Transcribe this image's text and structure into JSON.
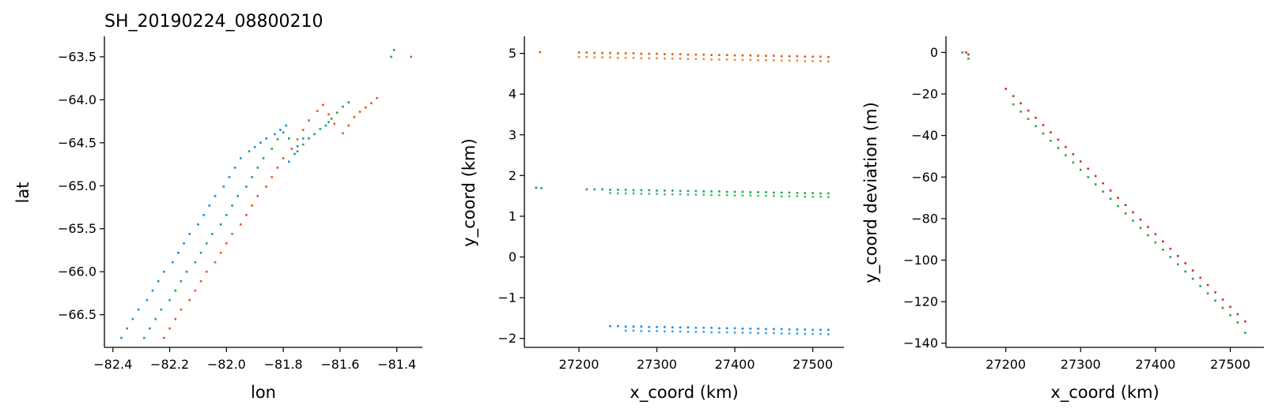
{
  "figure_title": "SH_20190224_08800210",
  "colors": {
    "strong_beam_orange": "#e05a12",
    "weak_beam_orange": "#f08a3c",
    "strong_beam_green": "#1fa653",
    "weak_beam_green": "#3cc472",
    "strong_beam_blue": "#1a8de0",
    "weak_beam_blue": "#30a8f2",
    "red": "#c8321e"
  },
  "chart_data": [
    {
      "type": "scatter",
      "title": "SH_20190224_08800210",
      "xlabel": "lon",
      "ylabel": "lat",
      "xlim": [
        -82.43,
        -81.31
      ],
      "ylim": [
        -66.88,
        -63.28
      ],
      "xticks": [
        -82.4,
        -82.2,
        -82.0,
        -81.8,
        -81.6,
        -81.4
      ],
      "xtick_labels": [
        "−82.4",
        "−82.2",
        "−82.0",
        "−81.8",
        "−81.6",
        "−81.4"
      ],
      "yticks": [
        -66.5,
        -66.0,
        -65.5,
        -65.0,
        -64.5,
        -64.0,
        -63.5
      ],
      "ytick_labels": [
        "−66.5",
        "−66.0",
        "−65.5",
        "−65.0",
        "−64.5",
        "−64.0",
        "−63.5"
      ],
      "grid": false,
      "series": [
        {
          "color": "#1a8de0",
          "x": [
            -82.37,
            -82.35,
            -82.33,
            -82.31,
            -82.28,
            -82.26,
            -82.24,
            -82.22,
            -82.19,
            -82.17,
            -82.15,
            -82.13,
            -82.1,
            -82.08,
            -82.06,
            -82.04,
            -82.01,
            -81.99,
            -81.97,
            -81.95,
            -81.92,
            -81.9,
            -81.88,
            -81.86,
            -81.83,
            -81.81,
            -81.79,
            -81.78,
            -81.76,
            -81.75,
            -81.73
          ],
          "y": [
            -66.77,
            -66.66,
            -66.55,
            -66.44,
            -66.33,
            -66.22,
            -66.11,
            -66.0,
            -65.89,
            -65.78,
            -65.67,
            -65.56,
            -65.45,
            -65.34,
            -65.23,
            -65.12,
            -65.01,
            -64.9,
            -64.79,
            -64.68,
            -64.6,
            -64.55,
            -64.5,
            -64.45,
            -64.4,
            -64.35,
            -64.3,
            -64.72,
            -64.63,
            -64.54,
            -64.45
          ]
        },
        {
          "color": "#1fa653",
          "x": [
            -82.29,
            -82.27,
            -82.25,
            -82.23,
            -82.2,
            -82.18,
            -82.16,
            -82.14,
            -82.11,
            -82.09,
            -82.07,
            -82.05,
            -82.02,
            -82.0,
            -81.98,
            -81.96,
            -81.93,
            -81.91,
            -81.89,
            -81.87,
            -81.84,
            -81.82,
            -81.8,
            -81.78,
            -81.75,
            -81.73,
            -81.71,
            -81.69,
            -81.67,
            -81.65,
            -81.64,
            -81.63,
            -81.61,
            -81.59,
            -81.57,
            -81.42,
            -81.41
          ],
          "y": [
            -66.77,
            -66.66,
            -66.55,
            -66.44,
            -66.33,
            -66.22,
            -66.11,
            -66.0,
            -65.89,
            -65.78,
            -65.67,
            -65.56,
            -65.45,
            -65.34,
            -65.23,
            -65.12,
            -65.01,
            -64.9,
            -64.79,
            -64.68,
            -64.57,
            -64.46,
            -64.38,
            -64.45,
            -64.6,
            -64.52,
            -64.45,
            -64.4,
            -64.34,
            -64.3,
            -64.26,
            -64.22,
            -64.15,
            -64.08,
            -64.03,
            -63.5,
            -63.42
          ]
        },
        {
          "color": "#e05a12",
          "x": [
            -82.22,
            -82.2,
            -82.18,
            -82.16,
            -82.13,
            -82.11,
            -82.09,
            -82.07,
            -82.04,
            -82.02,
            -82.0,
            -81.98,
            -81.95,
            -81.93,
            -81.91,
            -81.89,
            -81.86,
            -81.84,
            -81.82,
            -81.8,
            -81.77,
            -81.75,
            -81.73,
            -81.71,
            -81.68,
            -81.66,
            -81.64,
            -81.62,
            -81.59,
            -81.57,
            -81.55,
            -81.53,
            -81.51,
            -81.49,
            -81.47,
            -81.35
          ],
          "y": [
            -66.77,
            -66.66,
            -66.55,
            -66.44,
            -66.33,
            -66.22,
            -66.11,
            -66.0,
            -65.89,
            -65.78,
            -65.67,
            -65.56,
            -65.45,
            -65.34,
            -65.23,
            -65.12,
            -65.01,
            -64.9,
            -64.79,
            -64.68,
            -64.57,
            -64.46,
            -64.35,
            -64.24,
            -64.13,
            -64.06,
            -64.17,
            -64.28,
            -64.39,
            -64.3,
            -64.2,
            -64.14,
            -64.09,
            -64.04,
            -63.98,
            -63.5
          ]
        }
      ]
    },
    {
      "type": "scatter",
      "title": "",
      "xlabel": "x_coord (km)",
      "ylabel": "y_coord (km)",
      "xlim": [
        27130,
        27540
      ],
      "ylim": [
        -2.22,
        5.38
      ],
      "xticks": [
        27200,
        27300,
        27400,
        27500
      ],
      "xtick_labels": [
        "27200",
        "27300",
        "27400",
        "27500"
      ],
      "yticks": [
        -2,
        -1,
        0,
        1,
        2,
        3,
        4,
        5
      ],
      "ytick_labels": [
        "−2",
        "−1",
        "0",
        "1",
        "2",
        "3",
        "4",
        "5"
      ],
      "grid": false,
      "series": [
        {
          "color": "#e05a12",
          "x": [
            27150,
            27200,
            27210,
            27220,
            27230,
            27240,
            27250,
            27260,
            27270,
            27280,
            27290,
            27300,
            27310,
            27320,
            27330,
            27340,
            27350,
            27360,
            27370,
            27380,
            27390,
            27400,
            27410,
            27420,
            27430,
            27440,
            27450,
            27460,
            27470,
            27480,
            27490,
            27500,
            27510,
            27520
          ],
          "y": [
            5.03,
            5.02,
            5.02,
            5.01,
            5.01,
            5.01,
            5.0,
            5.0,
            5.0,
            4.99,
            4.99,
            4.99,
            4.98,
            4.98,
            4.98,
            4.97,
            4.97,
            4.97,
            4.96,
            4.96,
            4.96,
            4.95,
            4.95,
            4.95,
            4.94,
            4.94,
            4.94,
            4.93,
            4.93,
            4.93,
            4.92,
            4.92,
            4.92,
            4.91
          ]
        },
        {
          "color": "#f08a3c",
          "x": [
            27200,
            27210,
            27220,
            27230,
            27240,
            27250,
            27260,
            27270,
            27280,
            27290,
            27300,
            27310,
            27320,
            27330,
            27340,
            27350,
            27360,
            27370,
            27380,
            27390,
            27400,
            27410,
            27420,
            27430,
            27440,
            27450,
            27460,
            27470,
            27480,
            27490,
            27500,
            27510,
            27520
          ],
          "y": [
            4.91,
            4.91,
            4.9,
            4.9,
            4.9,
            4.89,
            4.89,
            4.89,
            4.88,
            4.88,
            4.88,
            4.87,
            4.87,
            4.87,
            4.86,
            4.86,
            4.86,
            4.85,
            4.85,
            4.85,
            4.84,
            4.84,
            4.84,
            4.83,
            4.83,
            4.83,
            4.82,
            4.82,
            4.82,
            4.81,
            4.81,
            4.81,
            4.8
          ]
        },
        {
          "color": "#1fa653",
          "x": [
            27145,
            27152,
            27210,
            27220,
            27230,
            27240,
            27250,
            27260,
            27270,
            27280,
            27290,
            27300,
            27310,
            27320,
            27330,
            27340,
            27350,
            27360,
            27370,
            27380,
            27390,
            27400,
            27410,
            27420,
            27430,
            27440,
            27450,
            27460,
            27470,
            27480,
            27490,
            27500,
            27510,
            27520
          ],
          "y": [
            1.7,
            1.69,
            1.66,
            1.66,
            1.66,
            1.65,
            1.65,
            1.65,
            1.64,
            1.64,
            1.64,
            1.63,
            1.63,
            1.63,
            1.62,
            1.62,
            1.62,
            1.61,
            1.61,
            1.61,
            1.6,
            1.6,
            1.6,
            1.59,
            1.59,
            1.59,
            1.58,
            1.58,
            1.58,
            1.57,
            1.57,
            1.57,
            1.56,
            1.56
          ]
        },
        {
          "color": "#3cc472",
          "x": [
            27240,
            27250,
            27260,
            27270,
            27280,
            27290,
            27300,
            27310,
            27320,
            27330,
            27340,
            27350,
            27360,
            27370,
            27380,
            27390,
            27400,
            27410,
            27420,
            27430,
            27440,
            27450,
            27460,
            27470,
            27480,
            27490,
            27500,
            27510,
            27520
          ],
          "y": [
            1.57,
            1.56,
            1.56,
            1.56,
            1.55,
            1.55,
            1.55,
            1.54,
            1.54,
            1.54,
            1.53,
            1.53,
            1.53,
            1.52,
            1.52,
            1.52,
            1.51,
            1.51,
            1.51,
            1.5,
            1.5,
            1.5,
            1.49,
            1.49,
            1.49,
            1.48,
            1.48,
            1.48,
            1.47
          ]
        },
        {
          "color": "#1a8de0",
          "x": [
            27240,
            27250,
            27260,
            27270,
            27280,
            27290,
            27300,
            27310,
            27320,
            27330,
            27340,
            27350,
            27360,
            27370,
            27380,
            27390,
            27400,
            27410,
            27420,
            27430,
            27440,
            27450,
            27460,
            27470,
            27480,
            27490,
            27500,
            27510,
            27520
          ],
          "y": [
            -1.7,
            -1.7,
            -1.71,
            -1.71,
            -1.71,
            -1.72,
            -1.72,
            -1.72,
            -1.73,
            -1.73,
            -1.73,
            -1.74,
            -1.74,
            -1.74,
            -1.75,
            -1.75,
            -1.75,
            -1.76,
            -1.76,
            -1.76,
            -1.77,
            -1.77,
            -1.77,
            -1.78,
            -1.78,
            -1.78,
            -1.79,
            -1.79,
            -1.79
          ]
        },
        {
          "color": "#30a8f2",
          "x": [
            27260,
            27270,
            27280,
            27290,
            27300,
            27310,
            27320,
            27330,
            27340,
            27350,
            27360,
            27370,
            27380,
            27390,
            27400,
            27410,
            27420,
            27430,
            27440,
            27450,
            27460,
            27470,
            27480,
            27490,
            27500,
            27510,
            27520
          ],
          "y": [
            -1.81,
            -1.81,
            -1.82,
            -1.82,
            -1.82,
            -1.83,
            -1.83,
            -1.83,
            -1.84,
            -1.84,
            -1.84,
            -1.85,
            -1.85,
            -1.85,
            -1.86,
            -1.86,
            -1.86,
            -1.87,
            -1.87,
            -1.87,
            -1.88,
            -1.88,
            -1.88,
            -1.89,
            -1.89,
            -1.89,
            -1.9
          ]
        }
      ]
    },
    {
      "type": "scatter",
      "title": "",
      "xlabel": "x_coord (km)",
      "ylabel": "y_coord deviation (m)",
      "xlim": [
        27120,
        27545
      ],
      "ylim": [
        -142,
        7
      ],
      "xticks": [
        27200,
        27300,
        27400,
        27500
      ],
      "xtick_labels": [
        "27200",
        "27300",
        "27400",
        "27500"
      ],
      "yticks": [
        -140,
        -120,
        -100,
        -80,
        -60,
        -40,
        -20,
        0
      ],
      "ytick_labels": [
        "−140",
        "−120",
        "−100",
        "−80",
        "−60",
        "−40",
        "−20",
        "0"
      ],
      "grid": false,
      "series": [
        {
          "color": "#c8321e",
          "x": [
            27147,
            27150,
            27200,
            27210,
            27220,
            27230,
            27240,
            27250,
            27260,
            27270,
            27280,
            27290,
            27300,
            27310,
            27320,
            27330,
            27340,
            27350,
            27360,
            27370,
            27380,
            27390,
            27400,
            27410,
            27420,
            27430,
            27440,
            27450,
            27460,
            27470,
            27480,
            27490,
            27500,
            27510,
            27520
          ],
          "y": [
            0,
            -1,
            -17.5,
            -21,
            -24.5,
            -28,
            -31.5,
            -35,
            -38.5,
            -42,
            -45.5,
            -49,
            -52.5,
            -56,
            -59.5,
            -63,
            -66.5,
            -70,
            -73.5,
            -77,
            -80.5,
            -84,
            -87.5,
            -91,
            -94.5,
            -98,
            -101.5,
            -105,
            -108.5,
            -112,
            -115.5,
            -119,
            -122.5,
            -126,
            -129.5
          ]
        },
        {
          "color": "#1fa653",
          "x": [
            27142,
            27150,
            27210,
            27220,
            27230,
            27240,
            27250,
            27260,
            27270,
            27280,
            27290,
            27300,
            27310,
            27320,
            27330,
            27340,
            27350,
            27360,
            27370,
            27380,
            27390,
            27400,
            27410,
            27420,
            27430,
            27440,
            27450,
            27460,
            27470,
            27480,
            27490,
            27500,
            27510,
            27520
          ],
          "y": [
            0,
            -3,
            -25,
            -28.5,
            -32,
            -35.5,
            -39,
            -42.5,
            -46,
            -49.5,
            -53,
            -56.5,
            -60,
            -63.5,
            -67,
            -70.5,
            -74,
            -77.5,
            -81,
            -84.5,
            -88,
            -91.5,
            -95,
            -98.5,
            -102,
            -105.5,
            -109,
            -112.5,
            -116,
            -119.5,
            -123,
            -126.5,
            -130,
            -135
          ]
        }
      ]
    }
  ]
}
